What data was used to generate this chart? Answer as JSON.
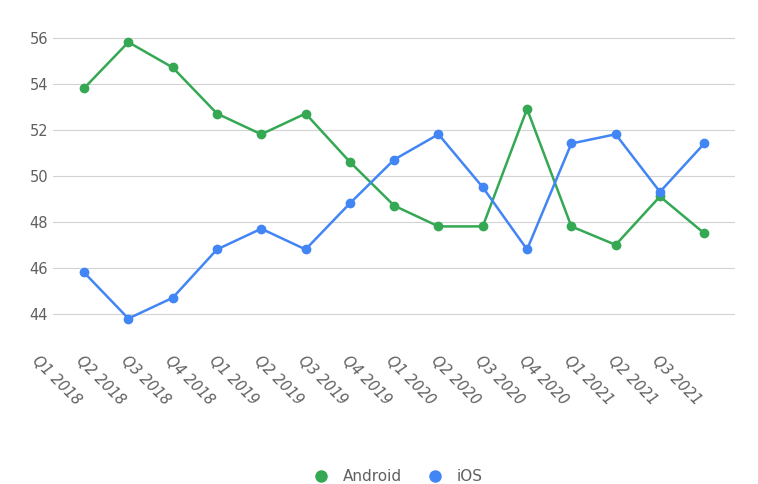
{
  "categories": [
    "Q1 2018",
    "Q2 2018",
    "Q3 2018",
    "Q4 2018",
    "Q1 2019",
    "Q2 2019",
    "Q3 2019",
    "Q4 2019",
    "Q1 2020",
    "Q2 2020",
    "Q3 2020",
    "Q4 2020",
    "Q1 2021",
    "Q2 2021",
    "Q3 2021"
  ],
  "android": [
    53.8,
    55.8,
    54.7,
    52.7,
    51.8,
    52.7,
    50.6,
    48.7,
    47.8,
    47.8,
    52.9,
    47.8,
    47.0,
    49.1,
    47.5
  ],
  "ios": [
    45.8,
    43.8,
    44.7,
    46.8,
    47.7,
    46.8,
    48.8,
    50.7,
    51.8,
    49.5,
    46.8,
    51.4,
    51.8,
    49.3,
    51.4
  ],
  "android_color": "#34a853",
  "ios_color": "#4285f4",
  "background_color": "#ffffff",
  "grid_color": "#d3d3d3",
  "ylim": [
    42.5,
    57.0
  ],
  "yticks": [
    44,
    46,
    48,
    50,
    52,
    54,
    56
  ],
  "marker_size": 6,
  "line_width": 1.8,
  "tick_fontsize": 10.5,
  "legend_fontsize": 11,
  "legend_marker_size": 10,
  "android_label": "Android",
  "ios_label": "iOS",
  "label_rotation": -45,
  "label_color": "#606060"
}
